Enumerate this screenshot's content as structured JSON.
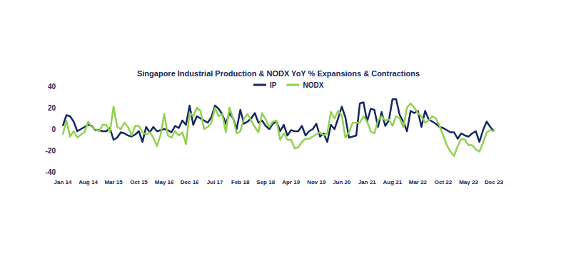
{
  "chart_data": {
    "type": "line",
    "title": "Singapore Industrial Production & NODX YoY % Expansions & Contractions",
    "categories": [
      "Jan 14",
      null,
      null,
      null,
      null,
      null,
      null,
      "Aug 14",
      null,
      null,
      null,
      null,
      null,
      null,
      "Mar 15",
      null,
      null,
      null,
      null,
      null,
      null,
      "Oct 15",
      null,
      null,
      null,
      null,
      null,
      null,
      "May 16",
      null,
      null,
      null,
      null,
      null,
      null,
      "Dec 16",
      null,
      null,
      null,
      null,
      null,
      null,
      "Jul 17",
      null,
      null,
      null,
      null,
      null,
      null,
      "Feb 18",
      null,
      null,
      null,
      null,
      null,
      null,
      "Sep 18",
      null,
      null,
      null,
      null,
      null,
      null,
      "Apr 19",
      null,
      null,
      null,
      null,
      null,
      null,
      "Nov 19",
      null,
      null,
      null,
      null,
      null,
      null,
      "Jun 20",
      null,
      null,
      null,
      null,
      null,
      null,
      "Jan 21",
      null,
      null,
      null,
      null,
      null,
      null,
      "Aug 21",
      null,
      null,
      null,
      null,
      null,
      null,
      "Mar 22",
      null,
      null,
      null,
      null,
      null,
      null,
      "Oct 22",
      null,
      null,
      null,
      null,
      null,
      null,
      "May 23",
      null,
      null,
      null,
      null,
      null,
      null,
      "Dec 23"
    ],
    "series": [
      {
        "name": "IP",
        "color": "#14285f",
        "values": [
          3,
          13,
          12,
          7,
          -2,
          0,
          2,
          4,
          3,
          -1,
          -1,
          -2,
          -2,
          1,
          -10,
          -8,
          -3,
          -4,
          -6,
          -7,
          -5,
          -2,
          -12,
          2,
          -3,
          2,
          -2,
          -1,
          0,
          -1,
          -3,
          3,
          1,
          8,
          4,
          22,
          4,
          12,
          10,
          8,
          6,
          11,
          22,
          19,
          14,
          5,
          15,
          10,
          0,
          18,
          5,
          7,
          10,
          15,
          6,
          8,
          3,
          0,
          5,
          7,
          -2,
          4,
          -6,
          -1,
          -2,
          -2,
          3,
          -6,
          -2,
          0,
          5,
          -7,
          -4,
          -12,
          4,
          0,
          10,
          21,
          11,
          -8,
          -7,
          -6,
          24,
          25,
          7,
          19,
          18,
          2,
          16,
          3,
          8,
          28,
          28,
          13,
          7,
          -2,
          17,
          15,
          17,
          2,
          17,
          9,
          7,
          5,
          2,
          1,
          -1,
          -3,
          -3,
          -9,
          -4,
          -6,
          -7,
          -4,
          -2,
          -12,
          -1,
          7,
          2,
          -2
        ]
      },
      {
        "name": "NODX",
        "color": "#92d050",
        "values": [
          -5,
          8,
          -7,
          -2,
          -8,
          -5,
          -3,
          7,
          2,
          0,
          -2,
          4,
          4,
          -3,
          21,
          2,
          0,
          6,
          2,
          -6,
          3,
          3,
          -3,
          -5,
          -3,
          -8,
          -16,
          -5,
          14,
          -6,
          -8,
          -2,
          -6,
          -3,
          -14,
          15,
          12,
          20,
          17,
          0,
          2,
          6,
          20,
          12,
          14,
          -3,
          20,
          10,
          -4,
          -2,
          10,
          14,
          8,
          2,
          -3,
          15,
          9,
          2,
          7,
          8,
          -10,
          -4,
          -10,
          -10,
          -18,
          -17,
          -12,
          -9,
          -9,
          -7,
          -5,
          -3,
          -6,
          -4,
          16,
          10,
          17,
          13,
          -8,
          -3,
          6,
          6,
          6,
          12,
          7,
          -2,
          -4,
          8,
          12,
          8,
          9,
          3,
          12,
          10,
          2,
          20,
          24,
          20,
          15,
          12,
          6,
          8,
          12,
          10,
          3,
          -6,
          -15,
          -21,
          -25,
          -16,
          -9,
          -10,
          -15,
          -15,
          -19,
          -21,
          -13,
          -3,
          -1,
          -2
        ]
      }
    ],
    "ylim": [
      -40,
      40
    ],
    "yticks": [
      -40,
      -20,
      0,
      20,
      40
    ],
    "grid": false,
    "legend": "top"
  }
}
